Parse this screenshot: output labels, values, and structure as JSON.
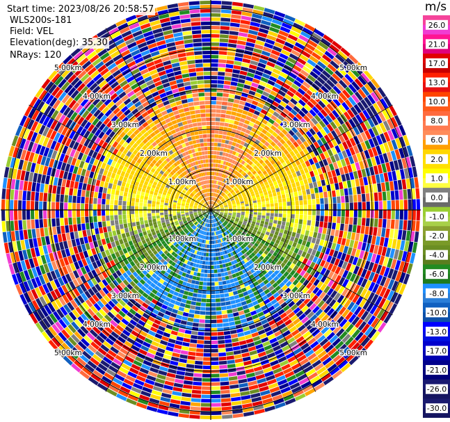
{
  "header": {
    "start_time": "Start time: 2023/08/26 20:58:57",
    "instrument": "WLS200s-181",
    "field": "Field: VEL",
    "elevation": "Elevation(deg): 35.30",
    "nrays": "NRays: 120"
  },
  "colorbar": {
    "unit": "m/s",
    "levels": [
      "26.0",
      "21.0",
      "17.0",
      "13.0",
      "10.0",
      "8.0",
      "6.0",
      "2.0",
      "1.0",
      "0.0",
      "-1.0",
      "-2.0",
      "-4.0",
      "-6.0",
      "-8.0",
      "-10.0",
      "-13.0",
      "-17.0",
      "-21.0",
      "-26.0",
      "-30.0"
    ],
    "colors": [
      "#f03cd2",
      "#ff1493",
      "#e00000",
      "#ff2000",
      "#ff4500",
      "#ff6a3d",
      "#ff8c5a",
      "#ffa500",
      "#ffd700",
      "#ffff00",
      "#ffff66",
      "#808080",
      "#606060",
      "#9acd32",
      "#8aa030",
      "#6b8e23",
      "#228b22",
      "#1e7b1e",
      "#1e90ff",
      "#1060c0",
      "#0000ff",
      "#0000cd",
      "#00008b",
      "#000080",
      "#191970",
      "#1a1a6e"
    ]
  },
  "ppi": {
    "range_ring_labels": [
      "1.00km",
      "2.00km",
      "3.00km",
      "4.00km",
      "5.00km"
    ]
  },
  "chart_data": {
    "type": "heatmap",
    "title": "",
    "field": "VEL",
    "unit": "m/s",
    "projection": "polar PPI",
    "nrays": 120,
    "elevation_deg": 35.3,
    "range_rings_km": [
      1.0,
      2.0,
      3.0,
      4.0,
      5.0
    ],
    "colorbar_ticks": [
      26.0,
      21.0,
      17.0,
      13.0,
      10.0,
      8.0,
      6.0,
      2.0,
      1.0,
      0.0,
      -1.0,
      -2.0,
      -4.0,
      -6.0,
      -8.0,
      -10.0,
      -13.0,
      -17.0,
      -21.0,
      -26.0,
      -30.0
    ],
    "vlim": [
      -30.0,
      30.0
    ],
    "sectors_by_azimuth": [
      {
        "azimuth": "north",
        "range_km": [
          0,
          2.6
        ],
        "approx_value_ms": 7
      },
      {
        "azimuth": "south",
        "range_km": [
          0,
          2.6
        ],
        "approx_value_ms": -9
      },
      {
        "azimuth": "east",
        "range_km": [
          0,
          2.6
        ],
        "approx_value_ms": 0.5
      },
      {
        "azimuth": "west",
        "range_km": [
          0,
          2.6
        ],
        "approx_value_ms": 1
      }
    ],
    "outer_region": "noise beyond ~2.6 km, values spanning full colour scale"
  }
}
